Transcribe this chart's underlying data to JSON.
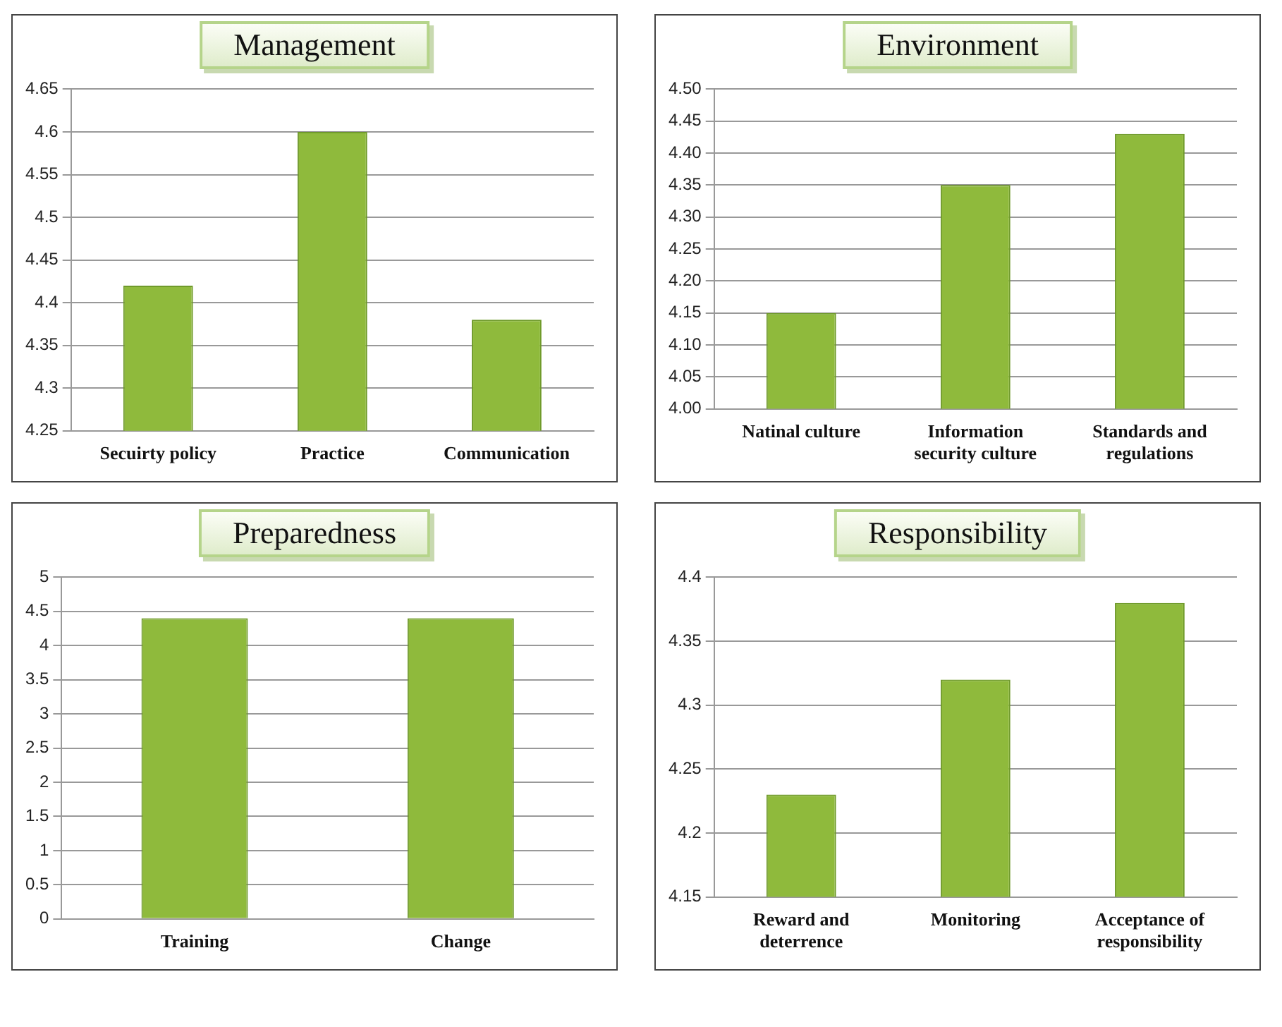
{
  "chart_data": [
    {
      "type": "bar",
      "title": "Management",
      "categories": [
        "Secuirty policy",
        "Practice",
        "Communication"
      ],
      "values": [
        4.42,
        4.6,
        4.38
      ],
      "color": "#8fba3c",
      "ylim": [
        4.25,
        4.65
      ],
      "yticks": [
        4.25,
        4.3,
        4.35,
        4.4,
        4.45,
        4.5,
        4.55,
        4.6,
        4.65
      ],
      "grid": "y",
      "legend": false
    },
    {
      "type": "bar",
      "title": "Environment",
      "categories": [
        "Natinal culture",
        "Information security culture",
        "Standards and regulations"
      ],
      "values": [
        4.15,
        4.35,
        4.43
      ],
      "color": "#8fba3c",
      "ylim": [
        4.0,
        4.5
      ],
      "yticks": [
        {
          "value": 4.0,
          "label": "4.00"
        },
        4.05,
        {
          "value": 4.1,
          "label": "4.10"
        },
        4.15,
        {
          "value": 4.2,
          "label": "4.20"
        },
        4.25,
        {
          "value": 4.3,
          "label": "4.30"
        },
        4.35,
        {
          "value": 4.4,
          "label": "4.40"
        },
        4.45,
        {
          "value": 4.5,
          "label": "4.50"
        }
      ],
      "grid": "y",
      "legend": false
    },
    {
      "type": "bar",
      "title": "Preparedness",
      "categories": [
        "Training",
        "Change"
      ],
      "values": [
        4.4,
        4.4
      ],
      "color": "#8fba3c",
      "ylim": [
        0,
        5
      ],
      "yticks": [
        0,
        0.5,
        1,
        1.5,
        2,
        2.5,
        3,
        3.5,
        4,
        4.5,
        5
      ],
      "grid": "y",
      "legend": false
    },
    {
      "type": "bar",
      "title": "Responsibility",
      "categories": [
        "Reward and deterrence",
        "Monitoring",
        "Acceptance of responsibility"
      ],
      "values": [
        4.23,
        4.32,
        4.38
      ],
      "color": "#8fba3c",
      "ylim": [
        4.15,
        4.4
      ],
      "yticks": [
        4.15,
        4.2,
        4.25,
        4.3,
        4.35,
        4.4
      ],
      "grid": "y",
      "legend": false
    }
  ]
}
